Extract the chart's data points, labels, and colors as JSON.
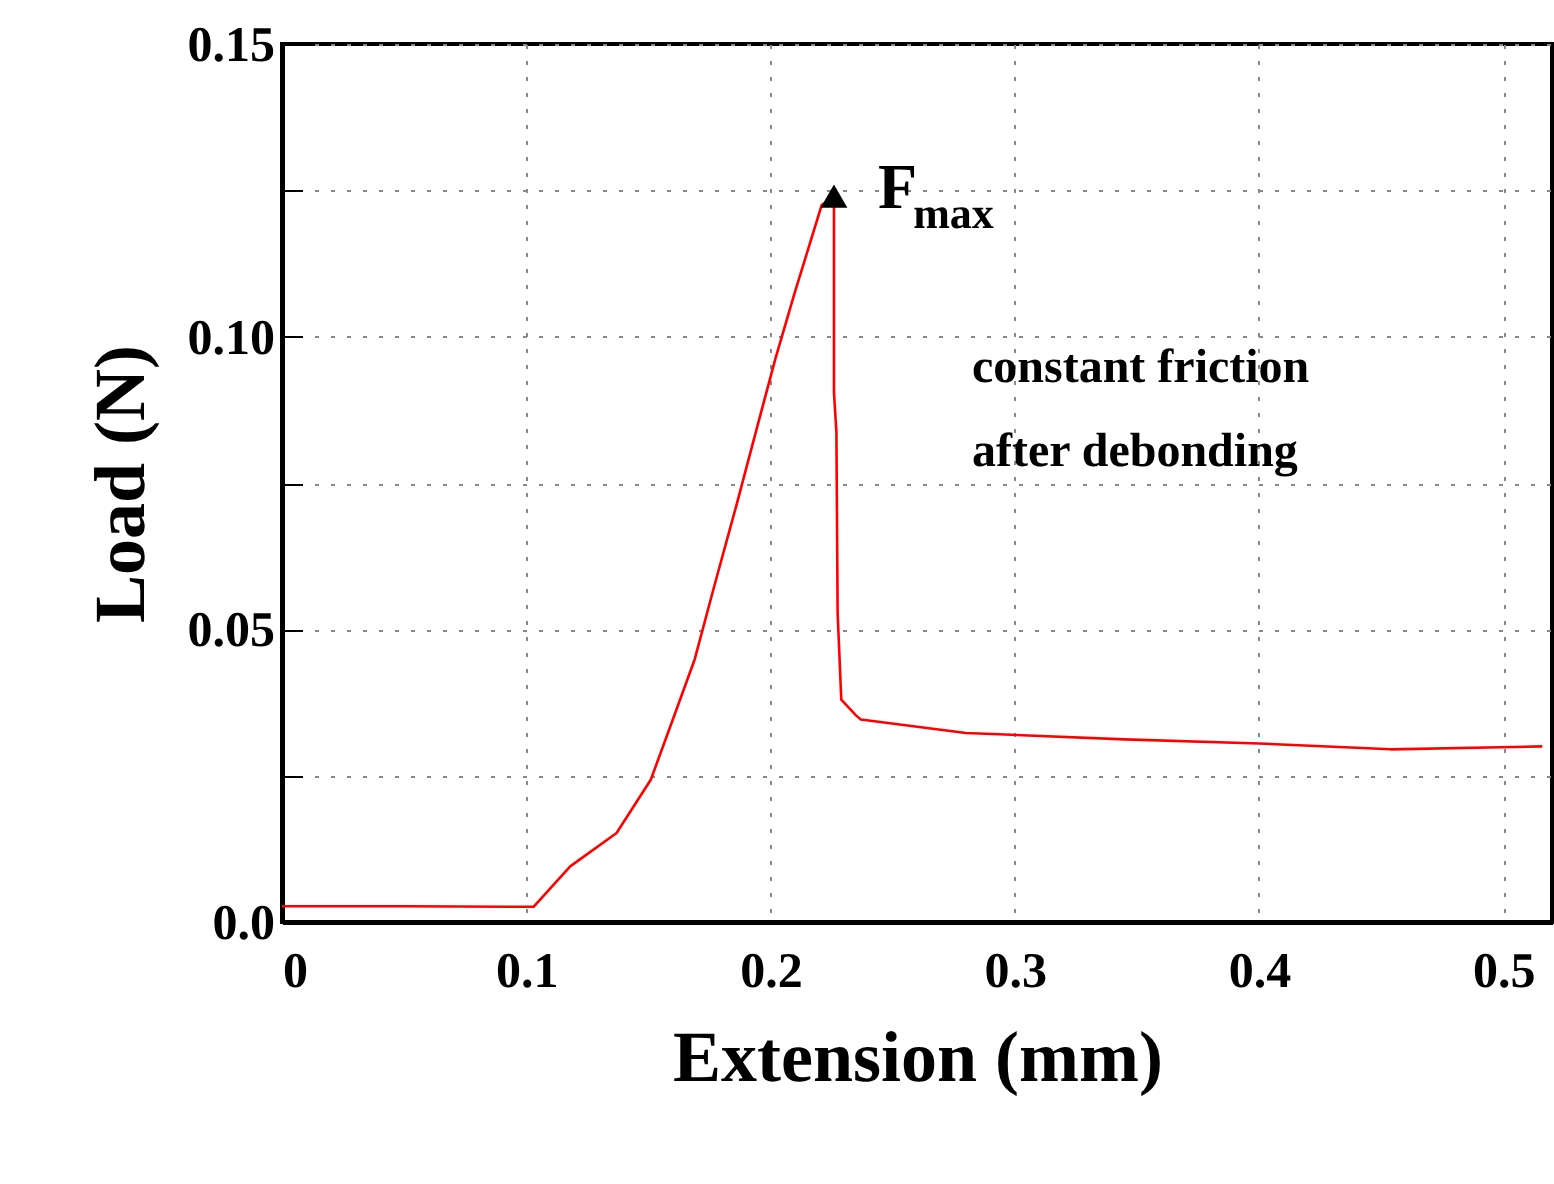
{
  "chart_data": {
    "type": "line",
    "xlabel": "Extension (mm)",
    "ylabel": "Load (N)",
    "x": [
      0,
      0.05,
      0.1,
      0.103,
      0.118,
      0.137,
      0.151,
      0.161,
      0.169,
      0.177,
      0.186,
      0.194,
      0.202,
      0.21,
      0.221,
      0.226,
      0.226,
      0.227,
      0.2275,
      0.229,
      0.235,
      0.237,
      0.28,
      0.345,
      0.4,
      0.454,
      0.516
    ],
    "series": [
      {
        "color": "#ff0000",
        "values": [
          0.0027,
          0.0027,
          0.0026,
          0.0026,
          0.0095,
          0.0152,
          0.0243,
          0.0357,
          0.0449,
          0.0574,
          0.0711,
          0.0837,
          0.0962,
          0.1076,
          0.1225,
          0.124,
          0.0905,
          0.0837,
          0.0528,
          0.038,
          0.0353,
          0.0346,
          0.0323,
          0.0312,
          0.0305,
          0.0295,
          0.03
        ]
      }
    ],
    "xlim": [
      0,
      0.52
    ],
    "xticks": [
      0,
      0.1,
      0.2,
      0.3,
      0.4,
      0.5
    ],
    "ylim": [
      0,
      0.15
    ],
    "yticks": [
      {
        "value": 0,
        "label": "0.0"
      },
      {
        "value": 0.025,
        "label": null
      },
      {
        "value": 0.05,
        "label": "0.05"
      },
      {
        "value": 0.075,
        "label": null
      },
      {
        "value": 0.1,
        "label": "0.10"
      },
      {
        "value": 0.125,
        "label": null
      },
      {
        "value": 0.15,
        "label": "0.15"
      }
    ],
    "grid": true,
    "line_style": "solid",
    "annotations": [
      {
        "text": "F$_{max}$",
        "x": 0.226,
        "y": 0.124
      },
      "constant friction after debonding"
    ]
  }
}
